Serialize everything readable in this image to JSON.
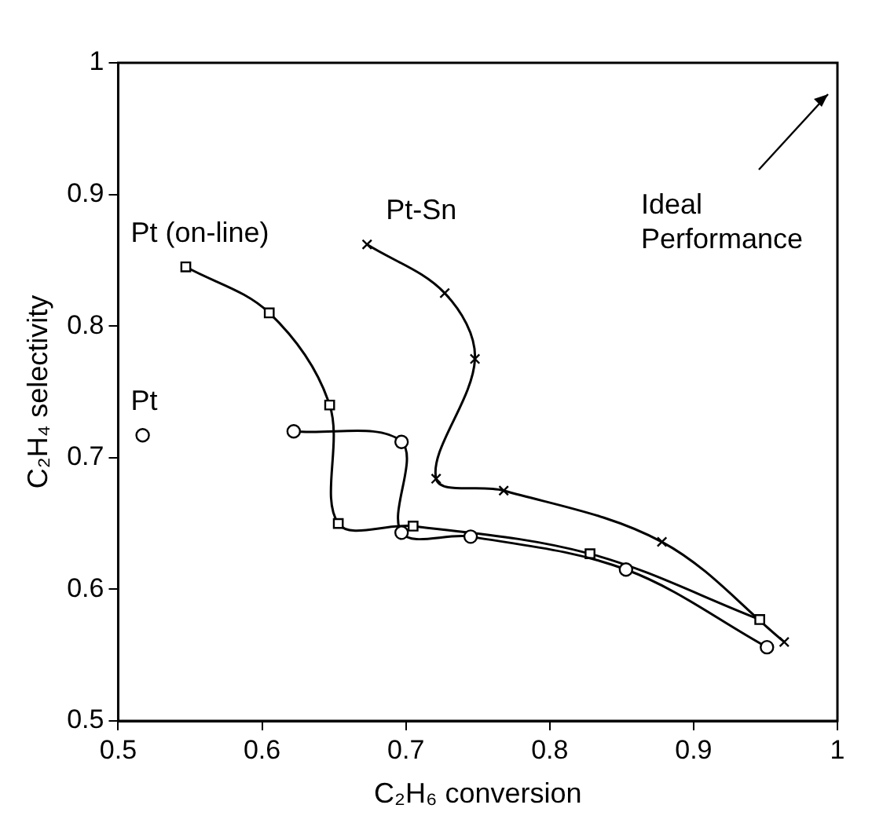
{
  "chart_data": {
    "type": "line",
    "xlabel": "C₂H₆ conversion",
    "ylabel": "C₂H₄ selectivity",
    "xlim": [
      0.5,
      1
    ],
    "ylim": [
      0.5,
      1
    ],
    "xticks": [
      0.5,
      0.6,
      0.7,
      0.8,
      0.9,
      1
    ],
    "yticks": [
      0.5,
      0.6,
      0.7,
      0.8,
      0.9,
      1
    ],
    "grid": false,
    "legend": false,
    "annotations": [
      "Ideal\nPerformance"
    ],
    "series": [
      {
        "name": "Pt",
        "type": "scatter",
        "marker": "circle",
        "color": "#000000",
        "x": [
          0.517
        ],
        "values": [
          0.717
        ]
      },
      {
        "type": "line",
        "marker": "circle",
        "color": "#000000",
        "x": [
          0.622,
          0.697,
          0.697,
          0.745,
          0.853,
          0.951
        ],
        "values": [
          0.72,
          0.712,
          0.643,
          0.64,
          0.615,
          0.556
        ]
      },
      {
        "name": "Pt (on-line)",
        "type": "line",
        "marker": "square",
        "color": "#000000",
        "x": [
          0.547,
          0.605,
          0.647,
          0.653,
          0.705,
          0.828,
          0.946
        ],
        "values": [
          0.845,
          0.81,
          0.74,
          0.65,
          0.648,
          0.627,
          0.577
        ]
      },
      {
        "name": "Pt-Sn",
        "type": "line",
        "marker": "cross",
        "color": "#000000",
        "x": [
          0.673,
          0.727,
          0.748,
          0.721,
          0.768,
          0.878,
          0.963
        ],
        "values": [
          0.862,
          0.825,
          0.775,
          0.684,
          0.675,
          0.636,
          0.56
        ]
      }
    ]
  }
}
